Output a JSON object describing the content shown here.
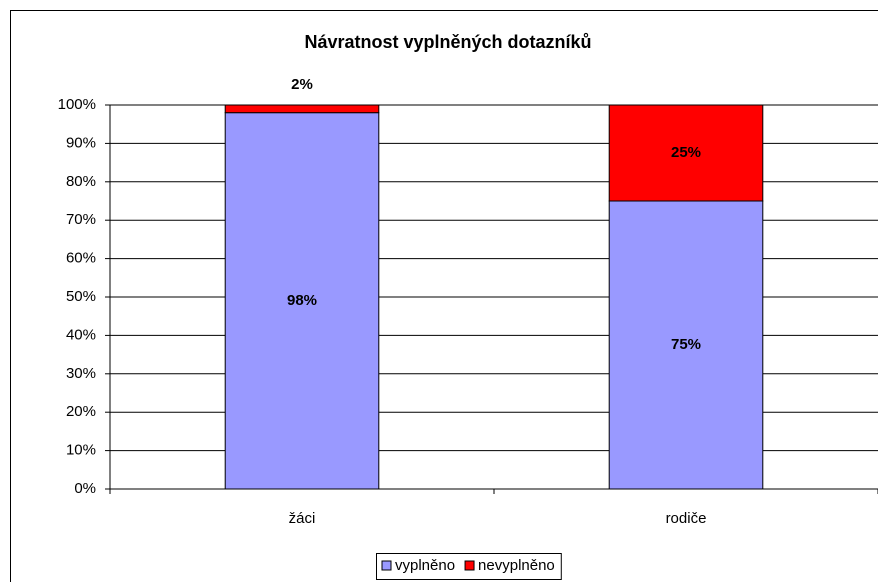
{
  "chart_data": {
    "type": "stacked_bar",
    "title": "Návratnost vyplněných dotazníků",
    "categories": [
      "žáci",
      "rodiče"
    ],
    "series": [
      {
        "name": "vyplněno",
        "color": "#9999ff",
        "values": [
          98,
          75
        ],
        "value_labels": [
          "98%",
          "75%"
        ]
      },
      {
        "name": "nevyplněno",
        "color": "#ff0000",
        "values": [
          2,
          25
        ],
        "value_labels": [
          "2%",
          "25%"
        ]
      }
    ],
    "ylim": [
      0,
      100
    ],
    "yticks": [
      {
        "value": 0,
        "label": "0%"
      },
      {
        "value": 10,
        "label": "10%"
      },
      {
        "value": 20,
        "label": "20%"
      },
      {
        "value": 30,
        "label": "30%"
      },
      {
        "value": 40,
        "label": "40%"
      },
      {
        "value": 50,
        "label": "50%"
      },
      {
        "value": 60,
        "label": "60%"
      },
      {
        "value": 70,
        "label": "70%"
      },
      {
        "value": 80,
        "label": "80%"
      },
      {
        "value": 90,
        "label": "90%"
      },
      {
        "value": 100,
        "label": "100%"
      }
    ],
    "grid": true,
    "legend": "bottom"
  }
}
